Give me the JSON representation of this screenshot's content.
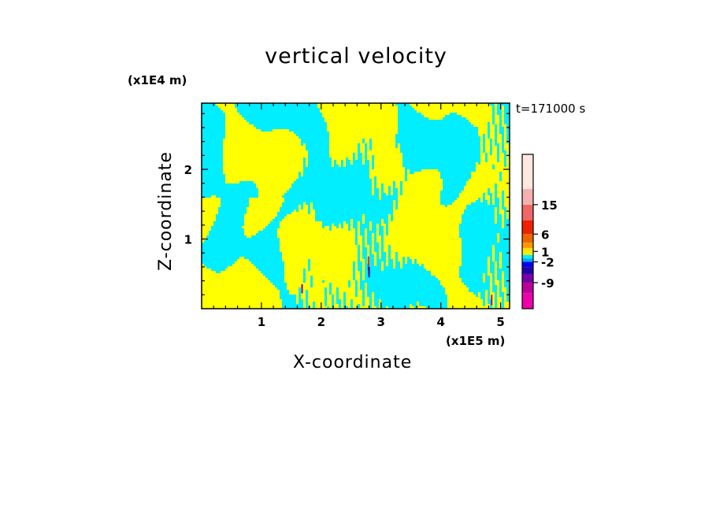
{
  "chart_data": {
    "type": "heatmap",
    "title": "vertical velocity",
    "xlabel": "X-coordinate",
    "ylabel": "Z-coordinate",
    "x_unit": "(x1E5 m)",
    "y_unit": "(x1E4 m)",
    "time_label": "t=171000 s",
    "xlim": [
      0,
      5.15
    ],
    "ylim": [
      0,
      2.95
    ],
    "x_ticks": [
      "1",
      "2",
      "3",
      "4",
      "5"
    ],
    "y_ticks": [
      "1",
      "2"
    ],
    "colorbar": {
      "levels": [
        -12,
        -9,
        -6,
        -4,
        -2,
        -1,
        0,
        1,
        2,
        4,
        6,
        10,
        15,
        20
      ],
      "labels": [
        "15",
        "6",
        "1",
        "-2",
        "-9"
      ],
      "colors": [
        "#ee00aa",
        "#bb0099",
        "#7700aa",
        "#2200aa",
        "#0000ee",
        "#00aaee",
        "#00eeff",
        "#eeee00",
        "#ffdd00",
        "#ff9900",
        "#ee6600",
        "#ee2200",
        "#ee6666",
        "#f5b0b0",
        "#fde8e0"
      ]
    },
    "field": {
      "dominant_colors": [
        "#ffff00",
        "#00eeff"
      ],
      "description_values": "two-color alternating updraft/downdraft bands"
    }
  }
}
